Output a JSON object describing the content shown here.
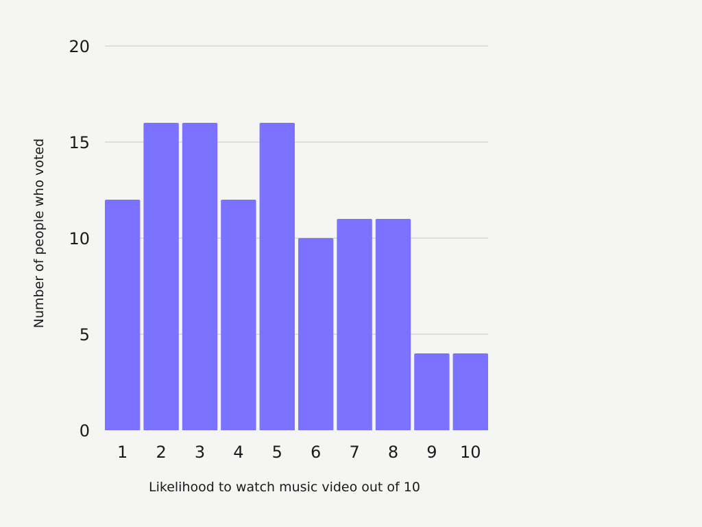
{
  "chart_data": {
    "type": "bar",
    "categories": [
      "1",
      "2",
      "3",
      "4",
      "5",
      "6",
      "7",
      "8",
      "9",
      "10"
    ],
    "values": [
      12,
      16,
      16,
      12,
      16,
      10,
      11,
      11,
      4,
      4
    ],
    "xlabel": "Likelihood to watch music video out of 10",
    "ylabel": "Number of people who voted",
    "ylim": [
      0,
      20
    ],
    "yticks": [
      0,
      5,
      10,
      15,
      20
    ],
    "grid": true,
    "bar_color": "#7b72ff",
    "legend": "none"
  }
}
